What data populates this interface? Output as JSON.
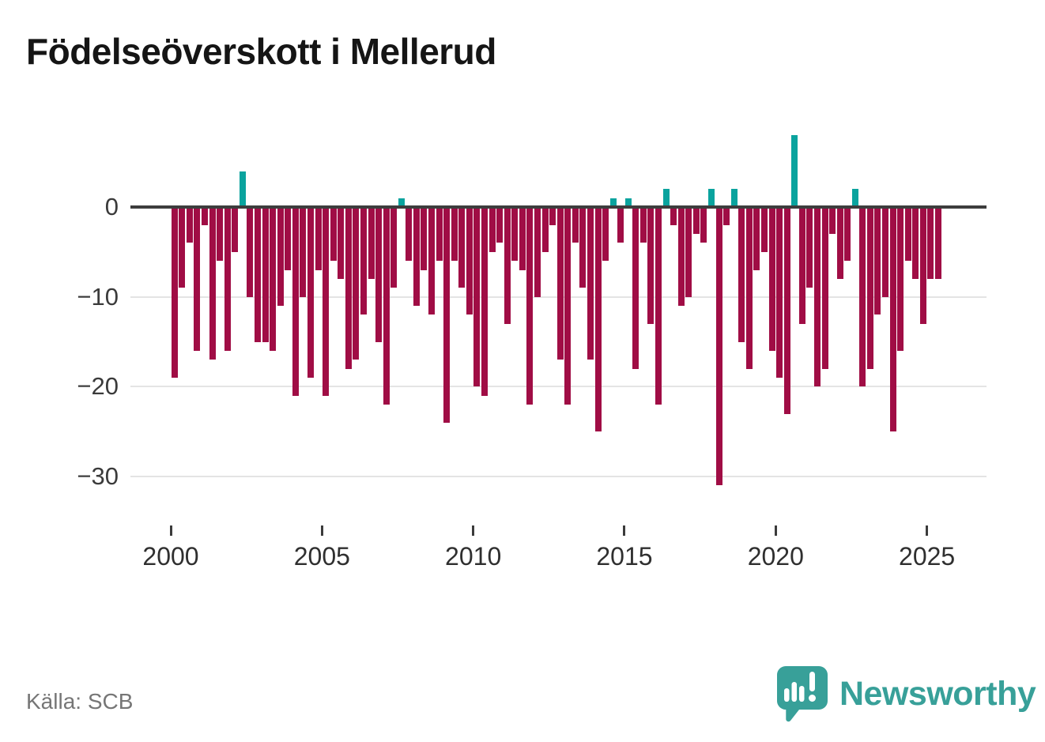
{
  "title": "Födelseöverskott i Mellerud",
  "source_note": "Källa: SCB",
  "logo": {
    "wordmark": "Newsworthy"
  },
  "colors": {
    "negative_bar": "#a00d45",
    "positive_bar": "#0aa39e",
    "zero_line": "#3d3d3d",
    "gridline": "#e4e4e4",
    "logo_teal": "#38a099",
    "title_text": "#151515",
    "axis_text": "#3b3b3b",
    "source_text": "#767676"
  },
  "chart_data": {
    "type": "bar",
    "title": "Födelseöverskott i Mellerud",
    "xlabel": "",
    "ylabel": "",
    "grid": true,
    "legend": false,
    "ylim": [
      -33,
      9
    ],
    "yticks": [
      0,
      -10,
      -20,
      -30
    ],
    "ytick_labels": [
      "0",
      "−10",
      "−20",
      "−30"
    ],
    "xticks": [
      2000,
      2005,
      2010,
      2015,
      2020,
      2025
    ],
    "xtick_labels": [
      "2000",
      "2005",
      "2010",
      "2015",
      "2020",
      "2025"
    ],
    "x": [
      "2000K1",
      "2000K2",
      "2000K3",
      "2000K4",
      "2001K1",
      "2001K2",
      "2001K3",
      "2001K4",
      "2002K1",
      "2002K2",
      "2002K3",
      "2002K4",
      "2003K1",
      "2003K2",
      "2003K3",
      "2003K4",
      "2004K1",
      "2004K2",
      "2004K3",
      "2004K4",
      "2005K1",
      "2005K2",
      "2005K3",
      "2005K4",
      "2006K1",
      "2006K2",
      "2006K3",
      "2006K4",
      "2007K1",
      "2007K2",
      "2007K3",
      "2007K4",
      "2008K1",
      "2008K2",
      "2008K3",
      "2008K4",
      "2009K1",
      "2009K2",
      "2009K3",
      "2009K4",
      "2010K1",
      "2010K2",
      "2010K3",
      "2010K4",
      "2011K1",
      "2011K2",
      "2011K3",
      "2011K4",
      "2012K1",
      "2012K2",
      "2012K3",
      "2012K4",
      "2013K1",
      "2013K2",
      "2013K3",
      "2013K4",
      "2014K1",
      "2014K2",
      "2014K3",
      "2014K4",
      "2015K1",
      "2015K2",
      "2015K3",
      "2015K4",
      "2016K1",
      "2016K2",
      "2016K3",
      "2016K4",
      "2017K1",
      "2017K2",
      "2017K3",
      "2017K4",
      "2018K1",
      "2018K2",
      "2018K3",
      "2018K4",
      "2019K1",
      "2019K2",
      "2019K3",
      "2019K4",
      "2020K1",
      "2020K2",
      "2020K3",
      "2020K4",
      "2021K1",
      "2021K2",
      "2021K3",
      "2021K4",
      "2022K1",
      "2022K2",
      "2022K3",
      "2022K4",
      "2023K1",
      "2023K2",
      "2023K3",
      "2023K4",
      "2024K1",
      "2024K2",
      "2024K3",
      "2024K4",
      "2025K1",
      "2025K2"
    ],
    "values": [
      -19,
      -9,
      -4,
      -16,
      -2,
      -17,
      -6,
      -16,
      -5,
      4,
      -10,
      -15,
      -15,
      -16,
      -11,
      -7,
      -21,
      -10,
      -19,
      -7,
      -21,
      -6,
      -8,
      -18,
      -17,
      -12,
      -8,
      -15,
      -22,
      -9,
      1,
      -6,
      -11,
      -7,
      -12,
      -6,
      -24,
      -6,
      -9,
      -12,
      -20,
      -21,
      -5,
      -4,
      -13,
      -6,
      -7,
      -22,
      -10,
      -5,
      -2,
      -17,
      -22,
      -4,
      -9,
      -17,
      -25,
      -6,
      1,
      -4,
      1,
      -18,
      -4,
      -13,
      -22,
      2,
      -2,
      -11,
      -10,
      -3,
      -4,
      2,
      -31,
      -2,
      2,
      -15,
      -18,
      -7,
      -5,
      -16,
      -19,
      -23,
      8,
      -13,
      -9,
      -20,
      -18,
      -3,
      -8,
      -6,
      2,
      -20,
      -18,
      -12,
      -10,
      -25,
      -16,
      -6,
      -8,
      -13,
      -8,
      -8
    ]
  }
}
